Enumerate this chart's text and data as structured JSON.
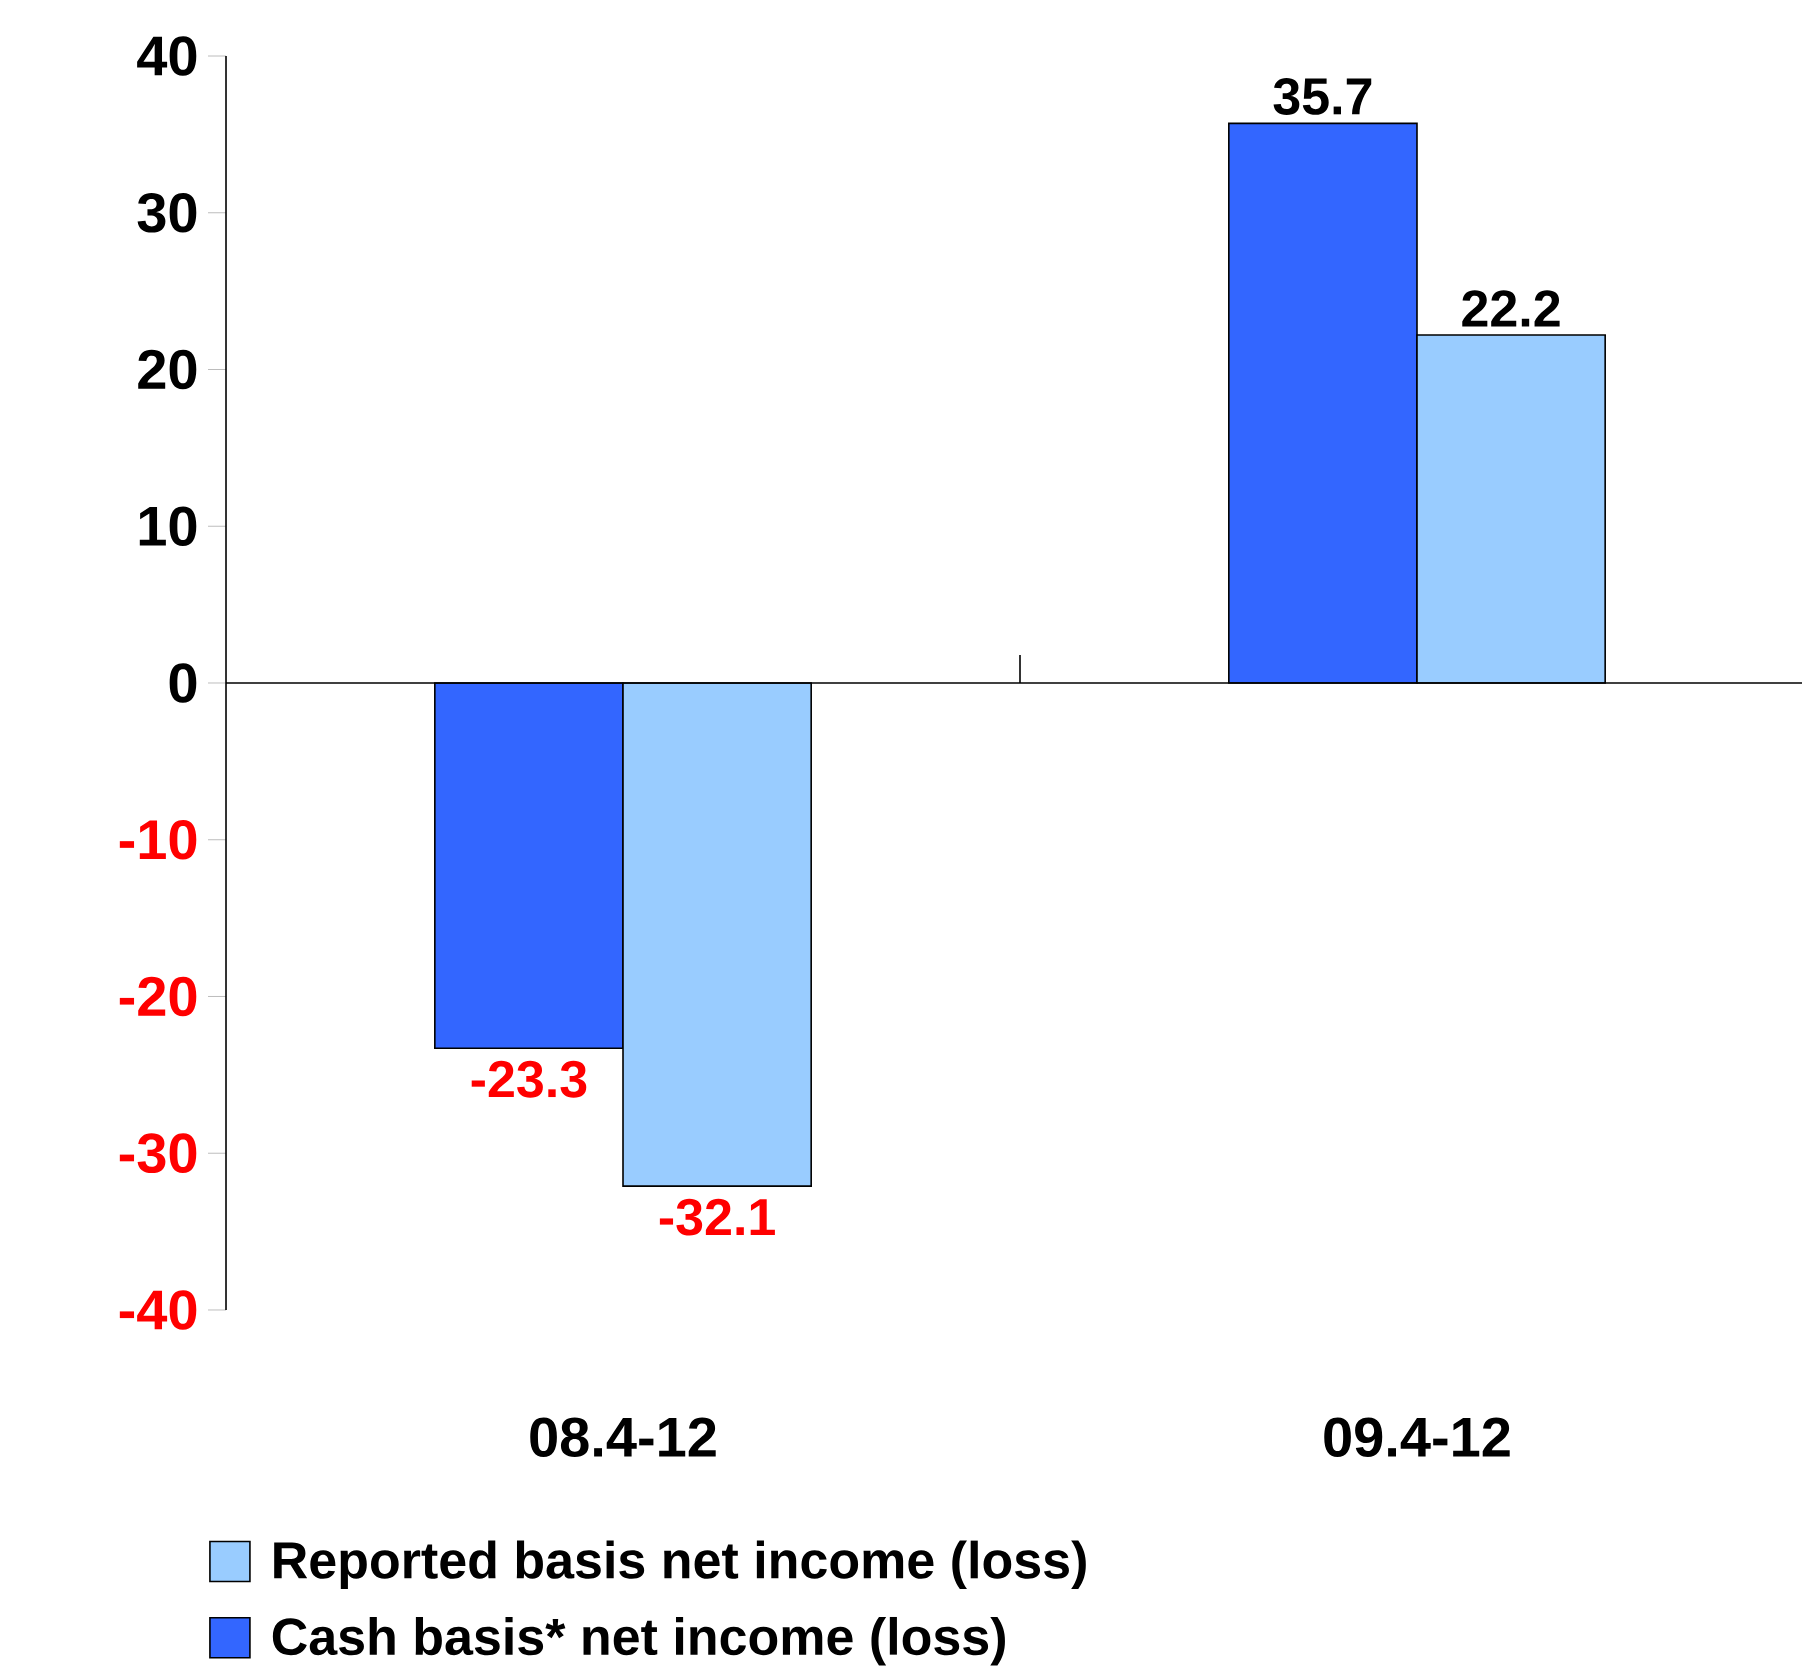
{
  "chart_data": {
    "type": "bar",
    "categories": [
      "08.4-12",
      "09.4-12"
    ],
    "series": [
      {
        "name": "Cash basis* net income (loss)",
        "color": "#3366ff",
        "values": [
          -23.3,
          35.7
        ]
      },
      {
        "name": "Reported basis net income (loss)",
        "color": "#99ccff",
        "values": [
          -32.1,
          22.2
        ]
      }
    ],
    "ylim": [
      -40,
      40
    ],
    "yticks": [
      -40,
      -30,
      -20,
      -10,
      0,
      10,
      20,
      30,
      40
    ],
    "data_labels": true,
    "legend": "bottom"
  }
}
